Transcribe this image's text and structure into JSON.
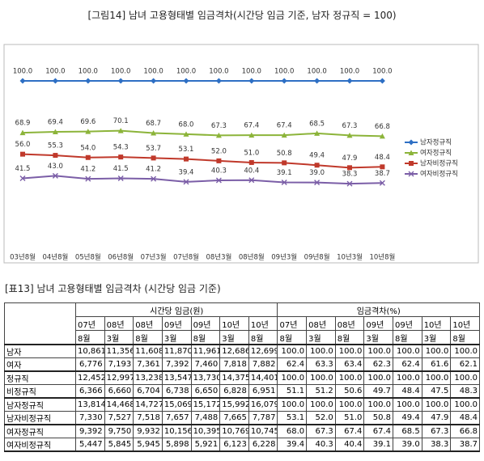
{
  "chart_data": {
    "type": "line",
    "title": "[그림14] 남녀 고용형태별 임금격차(시간당 임금 기준, 남자 정규직 = 100)",
    "categories": [
      "03년8월",
      "04년8월",
      "05년8월",
      "06년8월",
      "07년3월",
      "07년8월",
      "08년3월",
      "08년8월",
      "09년3월",
      "09년8월",
      "10년3월",
      "10년8월"
    ],
    "legend": "right",
    "series": [
      {
        "name": "남자정규직",
        "color": "#2e6fc4",
        "marker": "diamond",
        "values": [
          100,
          100,
          100,
          100,
          100,
          100,
          100,
          100,
          100,
          100,
          100,
          100
        ],
        "value_labels": [
          "100.0",
          "100.0",
          "100.0",
          "100.0",
          "100.0",
          "100.0",
          "100.0",
          "100.0",
          "100.0",
          "100.0",
          "100.0",
          "100.0"
        ]
      },
      {
        "name": "여자정규직",
        "color": "#8cb43a",
        "marker": "triangle",
        "values": [
          68.9,
          69.4,
          69.6,
          70.1,
          68.7,
          68,
          67.3,
          67.4,
          67.4,
          68.5,
          67.3,
          66.8
        ],
        "value_labels": [
          "68.9",
          "69.4",
          "69.6",
          "70.1",
          "68.7",
          "68.0",
          "67.3",
          "67.4",
          "67.4",
          "68.5",
          "67.3",
          "66.8"
        ]
      },
      {
        "name": "남자비정규직",
        "color": "#c0392b",
        "marker": "square",
        "values": [
          56,
          55.3,
          54,
          54.3,
          53.7,
          53.1,
          52,
          51,
          50.8,
          49.4,
          47.9,
          48.4
        ],
        "value_labels": [
          "56.0",
          "55.3",
          "54.0",
          "54.3",
          "53.7",
          "53.1",
          "52.0",
          "51.0",
          "50.8",
          "49.4",
          "47.9",
          "48.4"
        ]
      },
      {
        "name": "여자비정규직",
        "color": "#7b5ea7",
        "marker": "cross",
        "values": [
          41.5,
          43,
          41.2,
          41.5,
          41.2,
          39.4,
          40.3,
          40.4,
          39.1,
          39,
          38.3,
          38.7
        ],
        "value_labels": [
          "41.5",
          "43.0",
          "41.2",
          "41.5",
          "41.2",
          "39.4",
          "40.3",
          "40.4",
          "39.1",
          "39.0",
          "38.3",
          "38.7"
        ]
      }
    ]
  },
  "table": {
    "title": "[표13] 남녀 고용형태별 임금격차 (시간당 임금 기준)",
    "groups": [
      "시간당 임금(원)",
      "임금격차(%)"
    ],
    "columns": [
      [
        "07년",
        "8월"
      ],
      [
        "08년",
        "3월"
      ],
      [
        "08년",
        "8월"
      ],
      [
        "09년",
        "3월"
      ],
      [
        "09년",
        "8월"
      ],
      [
        "10년",
        "3월"
      ],
      [
        "10년",
        "8월"
      ],
      [
        "07년",
        "8월"
      ],
      [
        "08년",
        "3월"
      ],
      [
        "08년",
        "8월"
      ],
      [
        "09년",
        "3월"
      ],
      [
        "09년",
        "8월"
      ],
      [
        "10년",
        "3월"
      ],
      [
        "10년",
        "8월"
      ]
    ],
    "rows": [
      [
        "남자",
        "10,861",
        "11,356",
        "11,608",
        "11,870",
        "11,961",
        "12,686",
        "12,699",
        "100.0",
        "100.0",
        "100.0",
        "100.0",
        "100.0",
        "100.0",
        "100.0"
      ],
      [
        "여자",
        "6,776",
        "7,193",
        "7,361",
        "7,392",
        "7,460",
        "7,818",
        "7,882",
        "62.4",
        "63.3",
        "63.4",
        "62.3",
        "62.4",
        "61.6",
        "62.1"
      ],
      [
        "정규직",
        "12,452",
        "12,997",
        "13,238",
        "13,547",
        "13,730",
        "14,375",
        "14,401",
        "100.0",
        "100.0",
        "100.0",
        "100.0",
        "100.0",
        "100.0",
        "100.0"
      ],
      [
        "비정규직",
        "6,366",
        "6,660",
        "6,704",
        "6,738",
        "6,650",
        "6,828",
        "6,951",
        "51.1",
        "51.2",
        "50.6",
        "49.7",
        "48.4",
        "47.5",
        "48.3"
      ],
      [
        "남자정규직",
        "13,814",
        "14,468",
        "14,727",
        "15,069",
        "15,172",
        "15,992",
        "16,079",
        "100.0",
        "100.0",
        "100.0",
        "100.0",
        "100.0",
        "100.0",
        "100.0"
      ],
      [
        "남자비정규직",
        "7,330",
        "7,527",
        "7,518",
        "7,657",
        "7,488",
        "7,665",
        "7,787",
        "53.1",
        "52.0",
        "51.0",
        "50.8",
        "49.4",
        "47.9",
        "48.4"
      ],
      [
        "여자정규직",
        "9,392",
        "9,750",
        "9,932",
        "10,156",
        "10,395",
        "10,769",
        "10,745",
        "68.0",
        "67.3",
        "67.4",
        "67.4",
        "68.5",
        "67.3",
        "66.8"
      ],
      [
        "여자비정규직",
        "5,447",
        "5,845",
        "5,945",
        "5,898",
        "5,921",
        "6,123",
        "6,228",
        "39.4",
        "40.3",
        "40.4",
        "39.1",
        "39.0",
        "38.3",
        "38.7"
      ]
    ]
  }
}
